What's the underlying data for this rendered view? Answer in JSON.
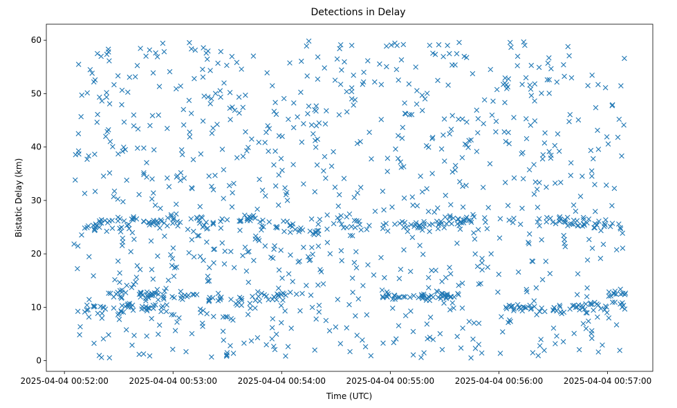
{
  "chart_data": {
    "type": "scatter",
    "title": "Detections in Delay",
    "xlabel": "Time (UTC)",
    "ylabel": "Bistatic Delay (km)",
    "x_ticks": [
      {
        "t": "00:52:00",
        "label": "2025-04-04 00:52:00"
      },
      {
        "t": "00:53:00",
        "label": "2025-04-04 00:53:00"
      },
      {
        "t": "00:54:00",
        "label": "2025-04-04 00:54:00"
      },
      {
        "t": "00:55:00",
        "label": "2025-04-04 00:55:00"
      },
      {
        "t": "00:56:00",
        "label": "2025-04-04 00:56:00"
      },
      {
        "t": "00:57:00",
        "label": "2025-04-04 00:57:00"
      }
    ],
    "y_ticks": [
      0,
      10,
      20,
      30,
      40,
      50,
      60
    ],
    "xlim": [
      "00:51:50",
      "00:57:25"
    ],
    "ylim": [
      -2,
      63
    ],
    "grid": false,
    "marker": "x",
    "color": "#1f77b4",
    "clusters": [
      {
        "t0": "00:52:10",
        "t1": "00:52:30",
        "y0": 24.5,
        "y1": 26.0,
        "n": 18,
        "jitter": 0.5
      },
      {
        "t0": "00:52:30",
        "t1": "00:53:45",
        "y0": 25.5,
        "y1": 26.5,
        "n": 60,
        "jitter": 0.7
      },
      {
        "t0": "00:53:45",
        "t1": "00:54:20",
        "y0": 26.0,
        "y1": 23.5,
        "n": 25,
        "jitter": 0.5
      },
      {
        "t0": "00:54:20",
        "t1": "00:54:50",
        "y0": 24.5,
        "y1": 25.5,
        "n": 20,
        "jitter": 1.5
      },
      {
        "t0": "00:54:55",
        "t1": "00:55:45",
        "y0": 25.0,
        "y1": 26.0,
        "n": 45,
        "jitter": 0.5
      },
      {
        "t0": "00:56:20",
        "t1": "00:57:10",
        "y0": 26.5,
        "y1": 25.0,
        "n": 40,
        "jitter": 0.5
      },
      {
        "t0": "00:52:25",
        "t1": "00:53:00",
        "y0": 12.5,
        "y1": 12.0,
        "n": 35,
        "jitter": 0.4
      },
      {
        "t0": "00:53:00",
        "t1": "00:53:30",
        "y0": 12.0,
        "y1": 11.5,
        "n": 20,
        "jitter": 0.4
      },
      {
        "t0": "00:53:30",
        "t1": "00:54:05",
        "y0": 11.0,
        "y1": 12.0,
        "n": 25,
        "jitter": 0.4
      },
      {
        "t0": "00:54:55",
        "t1": "00:55:40",
        "y0": 12.0,
        "y1": 12.2,
        "n": 45,
        "jitter": 0.3
      },
      {
        "t0": "00:56:00",
        "t1": "00:56:40",
        "y0": 10.0,
        "y1": 9.5,
        "n": 30,
        "jitter": 0.4
      },
      {
        "t0": "00:56:40",
        "t1": "00:57:10",
        "y0": 9.8,
        "y1": 10.5,
        "n": 30,
        "jitter": 0.5
      },
      {
        "t0": "00:57:00",
        "t1": "00:57:10",
        "y0": 12.5,
        "y1": 12.5,
        "n": 12,
        "jitter": 0.4
      },
      {
        "t0": "00:52:10",
        "t1": "00:52:45",
        "y0": 9.0,
        "y1": 10.0,
        "n": 25,
        "jitter": 0.5
      },
      {
        "t0": "00:52:30",
        "t1": "00:52:55",
        "y0": 10.0,
        "y1": 10.0,
        "n": 15,
        "jitter": 0.4
      }
    ],
    "background": {
      "t0": "00:52:05",
      "t1": "00:57:10",
      "y0": 0.5,
      "y1": 60,
      "n": 900
    }
  }
}
